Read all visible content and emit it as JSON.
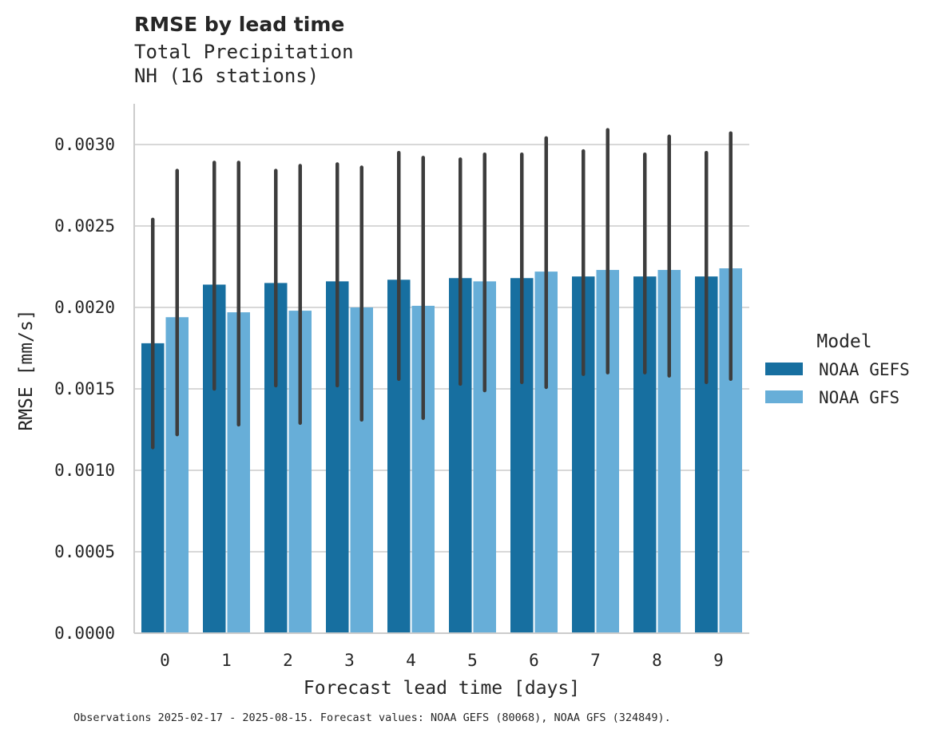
{
  "chart_data": {
    "type": "bar",
    "title": "RMSE by lead time",
    "subtitle": [
      "Total Precipitation",
      "NH (16 stations)"
    ],
    "xlabel": "Forecast lead time [days]",
    "ylabel": "RMSE [mm/s]",
    "categories": [
      "0",
      "1",
      "2",
      "3",
      "4",
      "5",
      "6",
      "7",
      "8",
      "9"
    ],
    "ylim": [
      0,
      0.00325
    ],
    "yticks": [
      "0.0000",
      "0.0005",
      "0.0010",
      "0.0015",
      "0.0020",
      "0.0025",
      "0.0030"
    ],
    "grid": "horizontal",
    "legend": {
      "title": "Model",
      "placement": "right"
    },
    "series": [
      {
        "name": "NOAA GEFS",
        "color": "#176fa0",
        "values": [
          0.00178,
          0.00214,
          0.00215,
          0.00216,
          0.00217,
          0.00218,
          0.00218,
          0.00219,
          0.00219,
          0.00219
        ],
        "err_low": [
          0.00114,
          0.0015,
          0.00152,
          0.00152,
          0.00156,
          0.00153,
          0.00154,
          0.00159,
          0.0016,
          0.00154
        ],
        "err_high": [
          0.00254,
          0.00289,
          0.00284,
          0.00288,
          0.00295,
          0.00291,
          0.00294,
          0.00296,
          0.00294,
          0.00295
        ]
      },
      {
        "name": "NOAA GFS",
        "color": "#67aed8",
        "values": [
          0.00194,
          0.00197,
          0.00198,
          0.002,
          0.00201,
          0.00216,
          0.00222,
          0.00223,
          0.00223,
          0.00224
        ],
        "err_low": [
          0.00122,
          0.00128,
          0.00129,
          0.00131,
          0.00132,
          0.00149,
          0.00151,
          0.0016,
          0.00158,
          0.00156
        ],
        "err_high": [
          0.00284,
          0.00289,
          0.00287,
          0.00286,
          0.00292,
          0.00294,
          0.00304,
          0.00309,
          0.00305,
          0.00307
        ]
      }
    ]
  },
  "footnote": "Observations 2025-02-17 - 2025-08-15. Forecast values: NOAA GEFS (80068), NOAA GFS (324849)."
}
